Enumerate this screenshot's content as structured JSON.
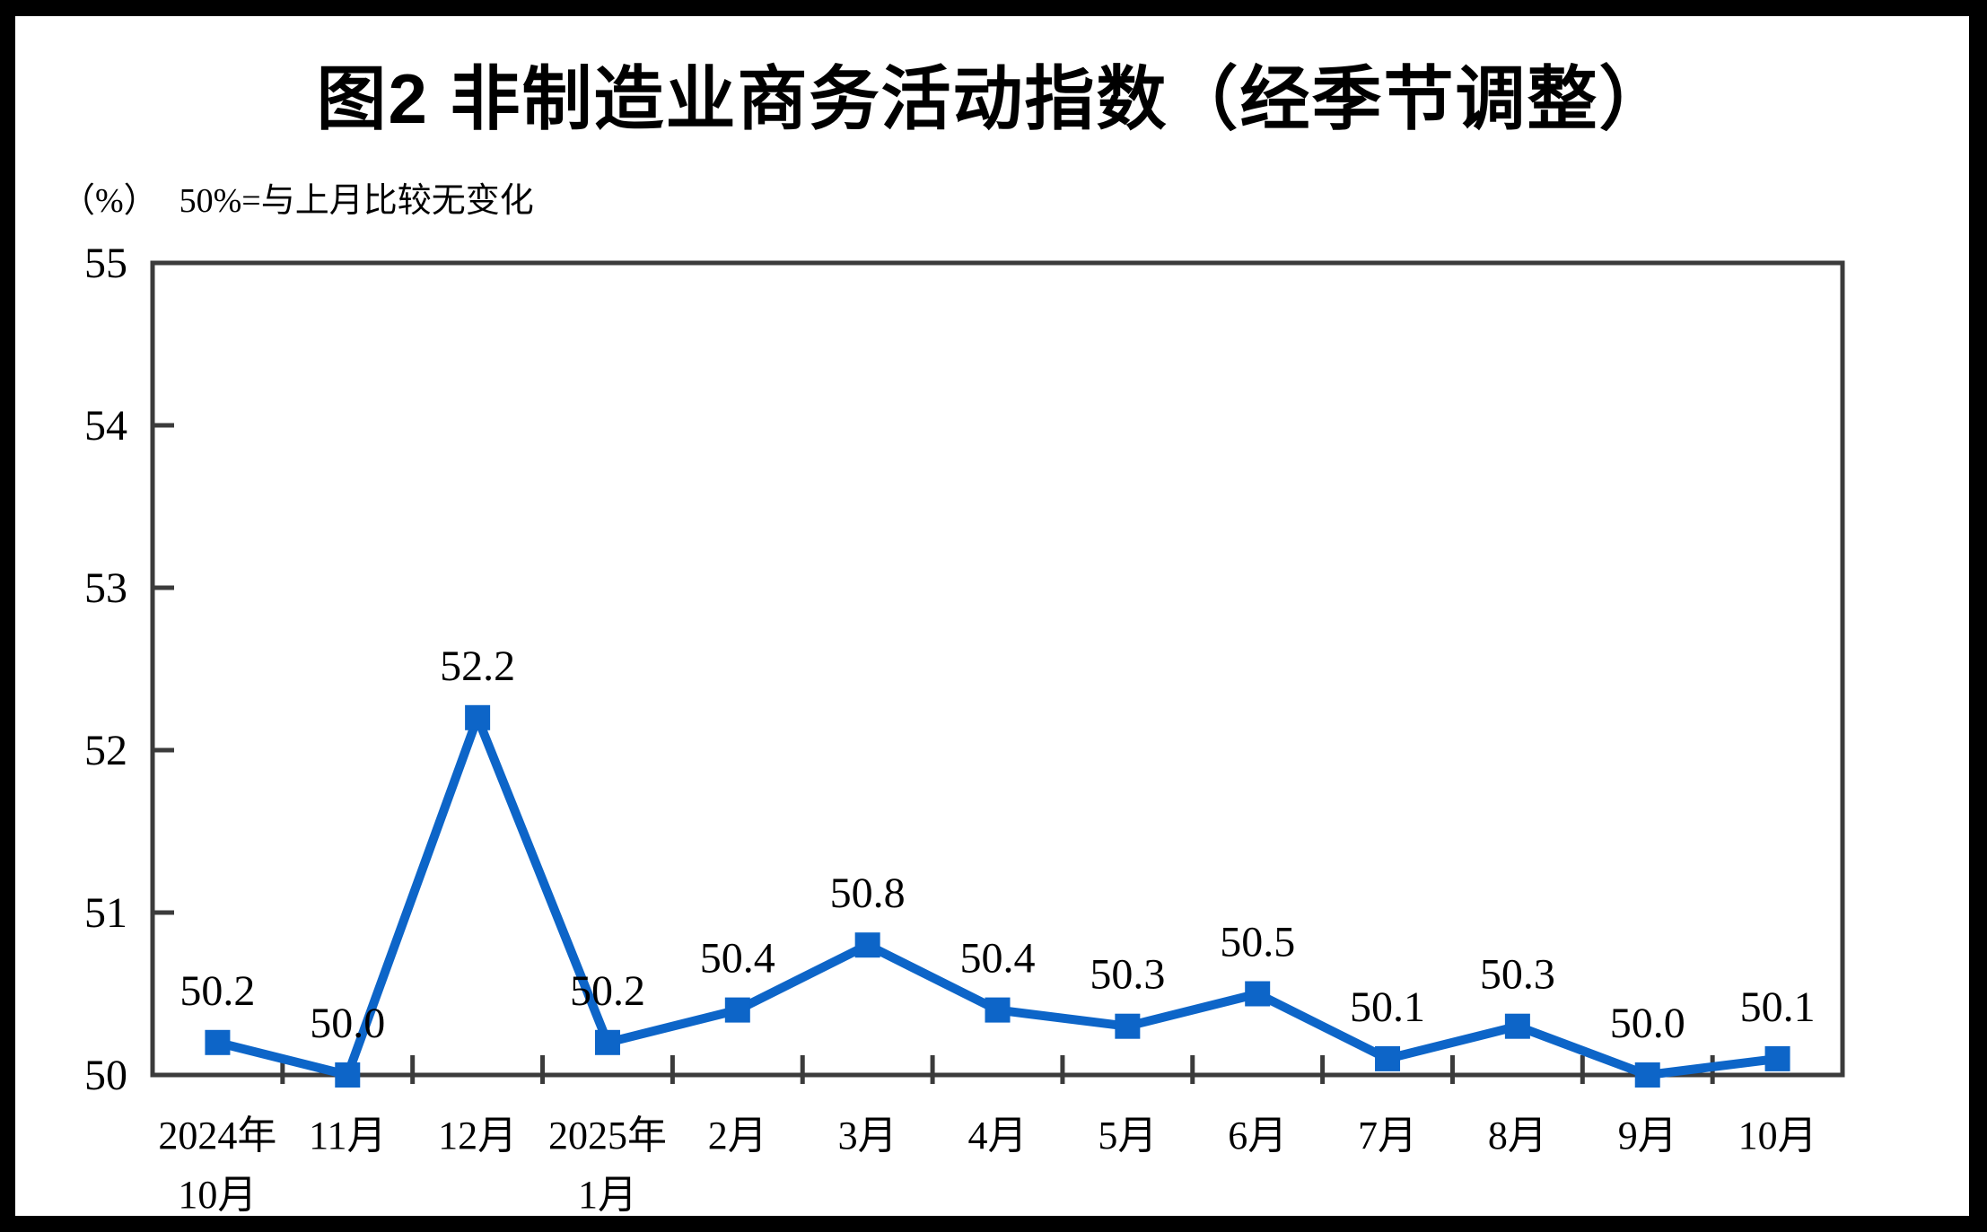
{
  "page": {
    "title": "图2 非制造业商务活动指数（经季节调整）",
    "unit_label": "（%）",
    "note": "50%=与上月比较无变化"
  },
  "chart_data": {
    "type": "line",
    "title": "图2 非制造业商务活动指数（经季节调整）",
    "ylabel": "（%）",
    "annotation": "50%=与上月比较无变化",
    "categories": [
      "2024年10月",
      "11月",
      "12月",
      "2025年1月",
      "2月",
      "3月",
      "4月",
      "5月",
      "6月",
      "7月",
      "8月",
      "9月",
      "10月"
    ],
    "category_labels": [
      [
        "2024年",
        "10月"
      ],
      [
        "11月",
        ""
      ],
      [
        "12月",
        ""
      ],
      [
        "2025年",
        "1月"
      ],
      [
        "2月",
        ""
      ],
      [
        "3月",
        ""
      ],
      [
        "4月",
        ""
      ],
      [
        "5月",
        ""
      ],
      [
        "6月",
        ""
      ],
      [
        "7月",
        ""
      ],
      [
        "8月",
        ""
      ],
      [
        "9月",
        ""
      ],
      [
        "10月",
        ""
      ]
    ],
    "series": [
      {
        "name": "非制造业商务活动指数",
        "values": [
          50.2,
          50.0,
          52.2,
          50.2,
          50.4,
          50.8,
          50.4,
          50.3,
          50.5,
          50.1,
          50.3,
          50.0,
          50.1
        ],
        "data_labels": [
          "50.2",
          "50.0",
          "52.2",
          "50.2",
          "50.4",
          "50.8",
          "50.4",
          "50.3",
          "50.5",
          "50.1",
          "50.3",
          "50.0",
          "50.1"
        ]
      }
    ],
    "ylim": [
      50,
      55
    ],
    "yticks": [
      50,
      51,
      52,
      53,
      54,
      55
    ],
    "grid": false,
    "legend_position": "none",
    "marker": "square",
    "colors": {
      "series": "#0D65C8",
      "axis": "#3B3B3B",
      "text": "#000000",
      "background": "#FFFFFF",
      "frame": "#000000"
    }
  }
}
